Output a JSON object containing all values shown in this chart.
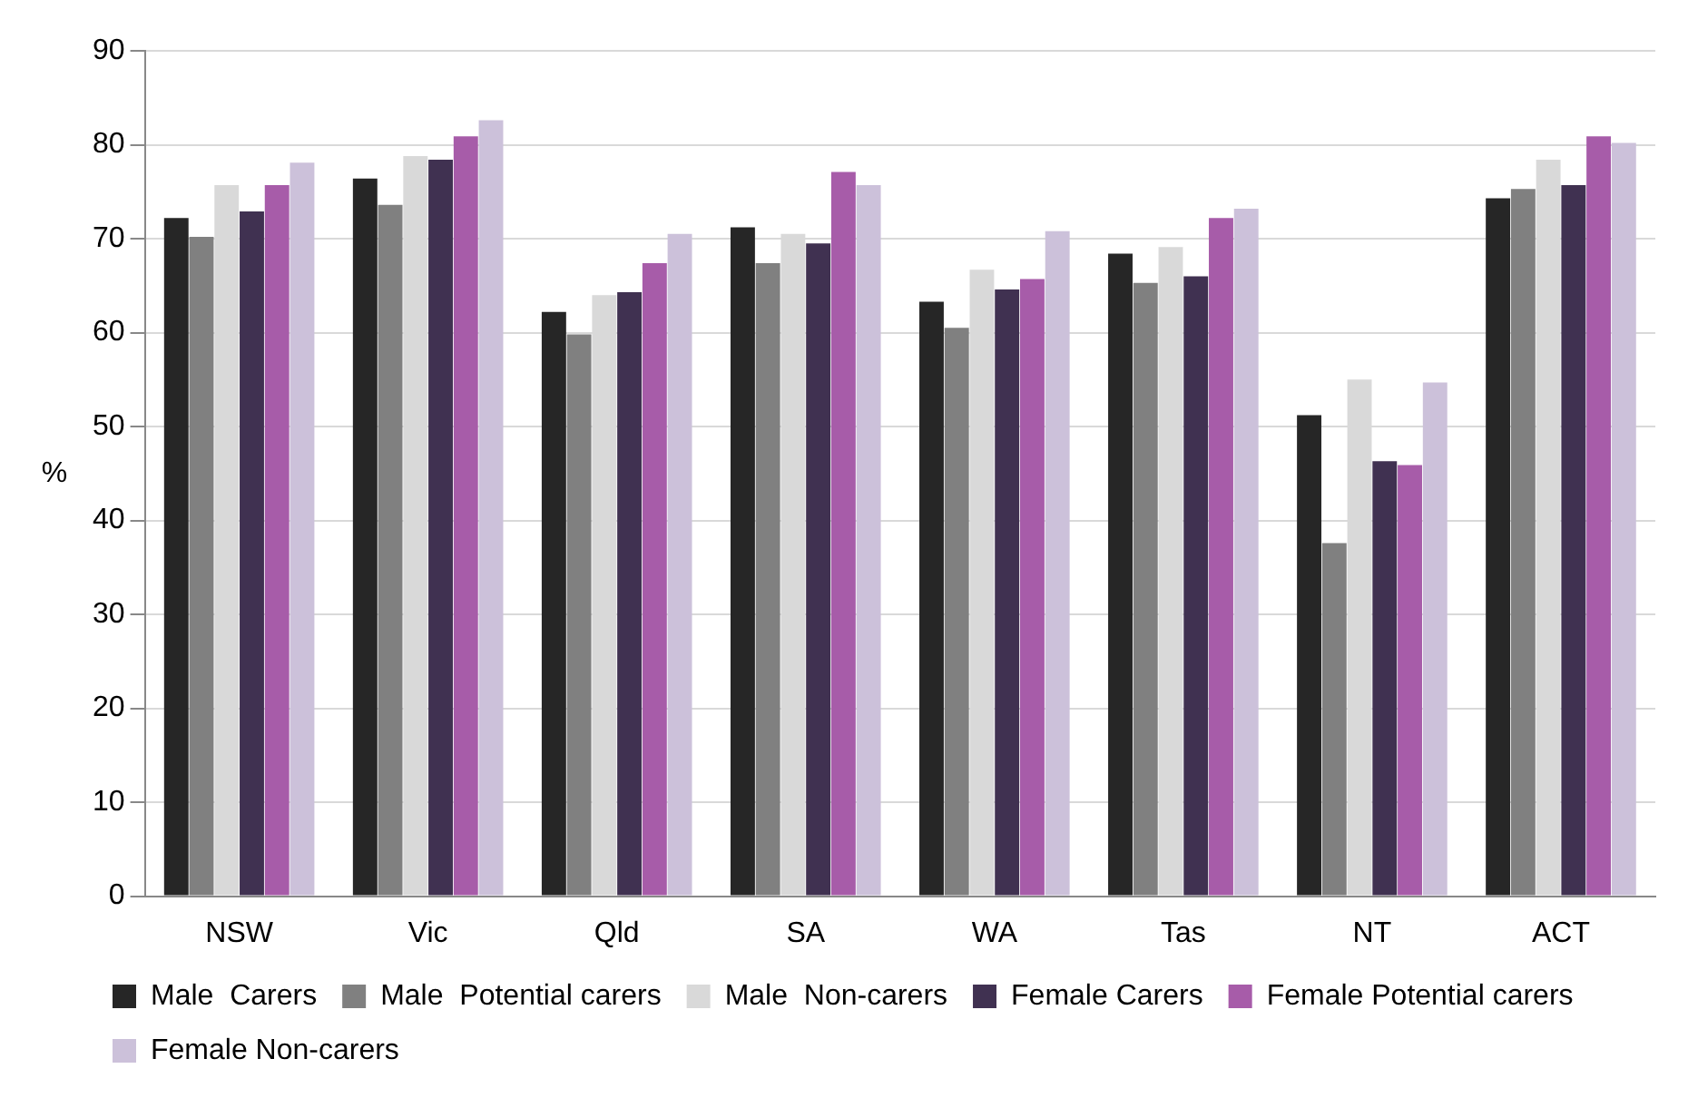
{
  "chart_data": {
    "type": "bar",
    "ylabel": "%",
    "categories": [
      "NSW",
      "Vic",
      "Qld",
      "SA",
      "WA",
      "Tas",
      "NT",
      "ACT"
    ],
    "series": [
      {
        "name": "Male  Carers",
        "color": "#262626",
        "values": [
          72.2,
          76.4,
          62.2,
          71.2,
          63.3,
          68.4,
          51.2,
          74.3
        ]
      },
      {
        "name": "Male  Potential carers",
        "color": "#808080",
        "values": [
          70.2,
          73.6,
          59.8,
          67.4,
          60.5,
          65.3,
          37.6,
          75.3
        ]
      },
      {
        "name": "Male  Non-carers",
        "color": "#d9d9d9",
        "values": [
          75.7,
          78.8,
          64.0,
          70.5,
          66.7,
          69.1,
          55.0,
          78.4
        ]
      },
      {
        "name": "Female Carers",
        "color": "#403151",
        "values": [
          72.9,
          78.4,
          64.3,
          69.5,
          64.6,
          66.0,
          46.3,
          75.7
        ]
      },
      {
        "name": "Female Potential carers",
        "color": "#a75ca9",
        "values": [
          75.7,
          80.9,
          67.4,
          77.1,
          65.7,
          72.2,
          45.9,
          80.9
        ]
      },
      {
        "name": "Female Non-carers",
        "color": "#ccc1da",
        "values": [
          78.1,
          82.6,
          70.5,
          75.7,
          70.8,
          73.2,
          54.7,
          80.2
        ]
      }
    ],
    "ylim": [
      0,
      90
    ],
    "yticks": [
      0,
      10,
      20,
      30,
      40,
      50,
      60,
      70,
      80,
      90
    ],
    "grid": "y",
    "legend": "bottom"
  }
}
